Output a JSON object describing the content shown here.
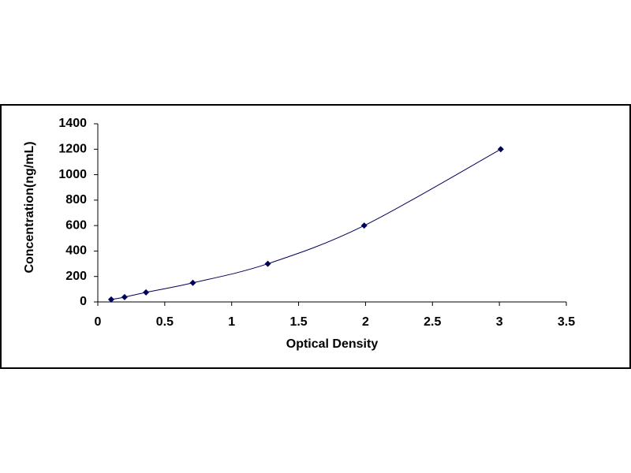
{
  "chart_data": {
    "type": "line",
    "x_label": "Optical Density",
    "y_label": "Concentration(ng/mL)",
    "x": [
      0.1,
      0.2,
      0.36,
      0.71,
      1.27,
      1.99,
      3.01
    ],
    "values": [
      19,
      38,
      75,
      150,
      300,
      600,
      1200
    ],
    "color": "#00005a",
    "xlim": [
      0,
      3.5
    ],
    "xticks": [
      0,
      0.5,
      1,
      1.5,
      2,
      2.5,
      3,
      3.5
    ],
    "ylim": [
      0,
      1400
    ],
    "yticks": [
      0,
      200,
      400,
      600,
      800,
      1000,
      1200,
      1400
    ],
    "grid": false,
    "smooth": true
  }
}
